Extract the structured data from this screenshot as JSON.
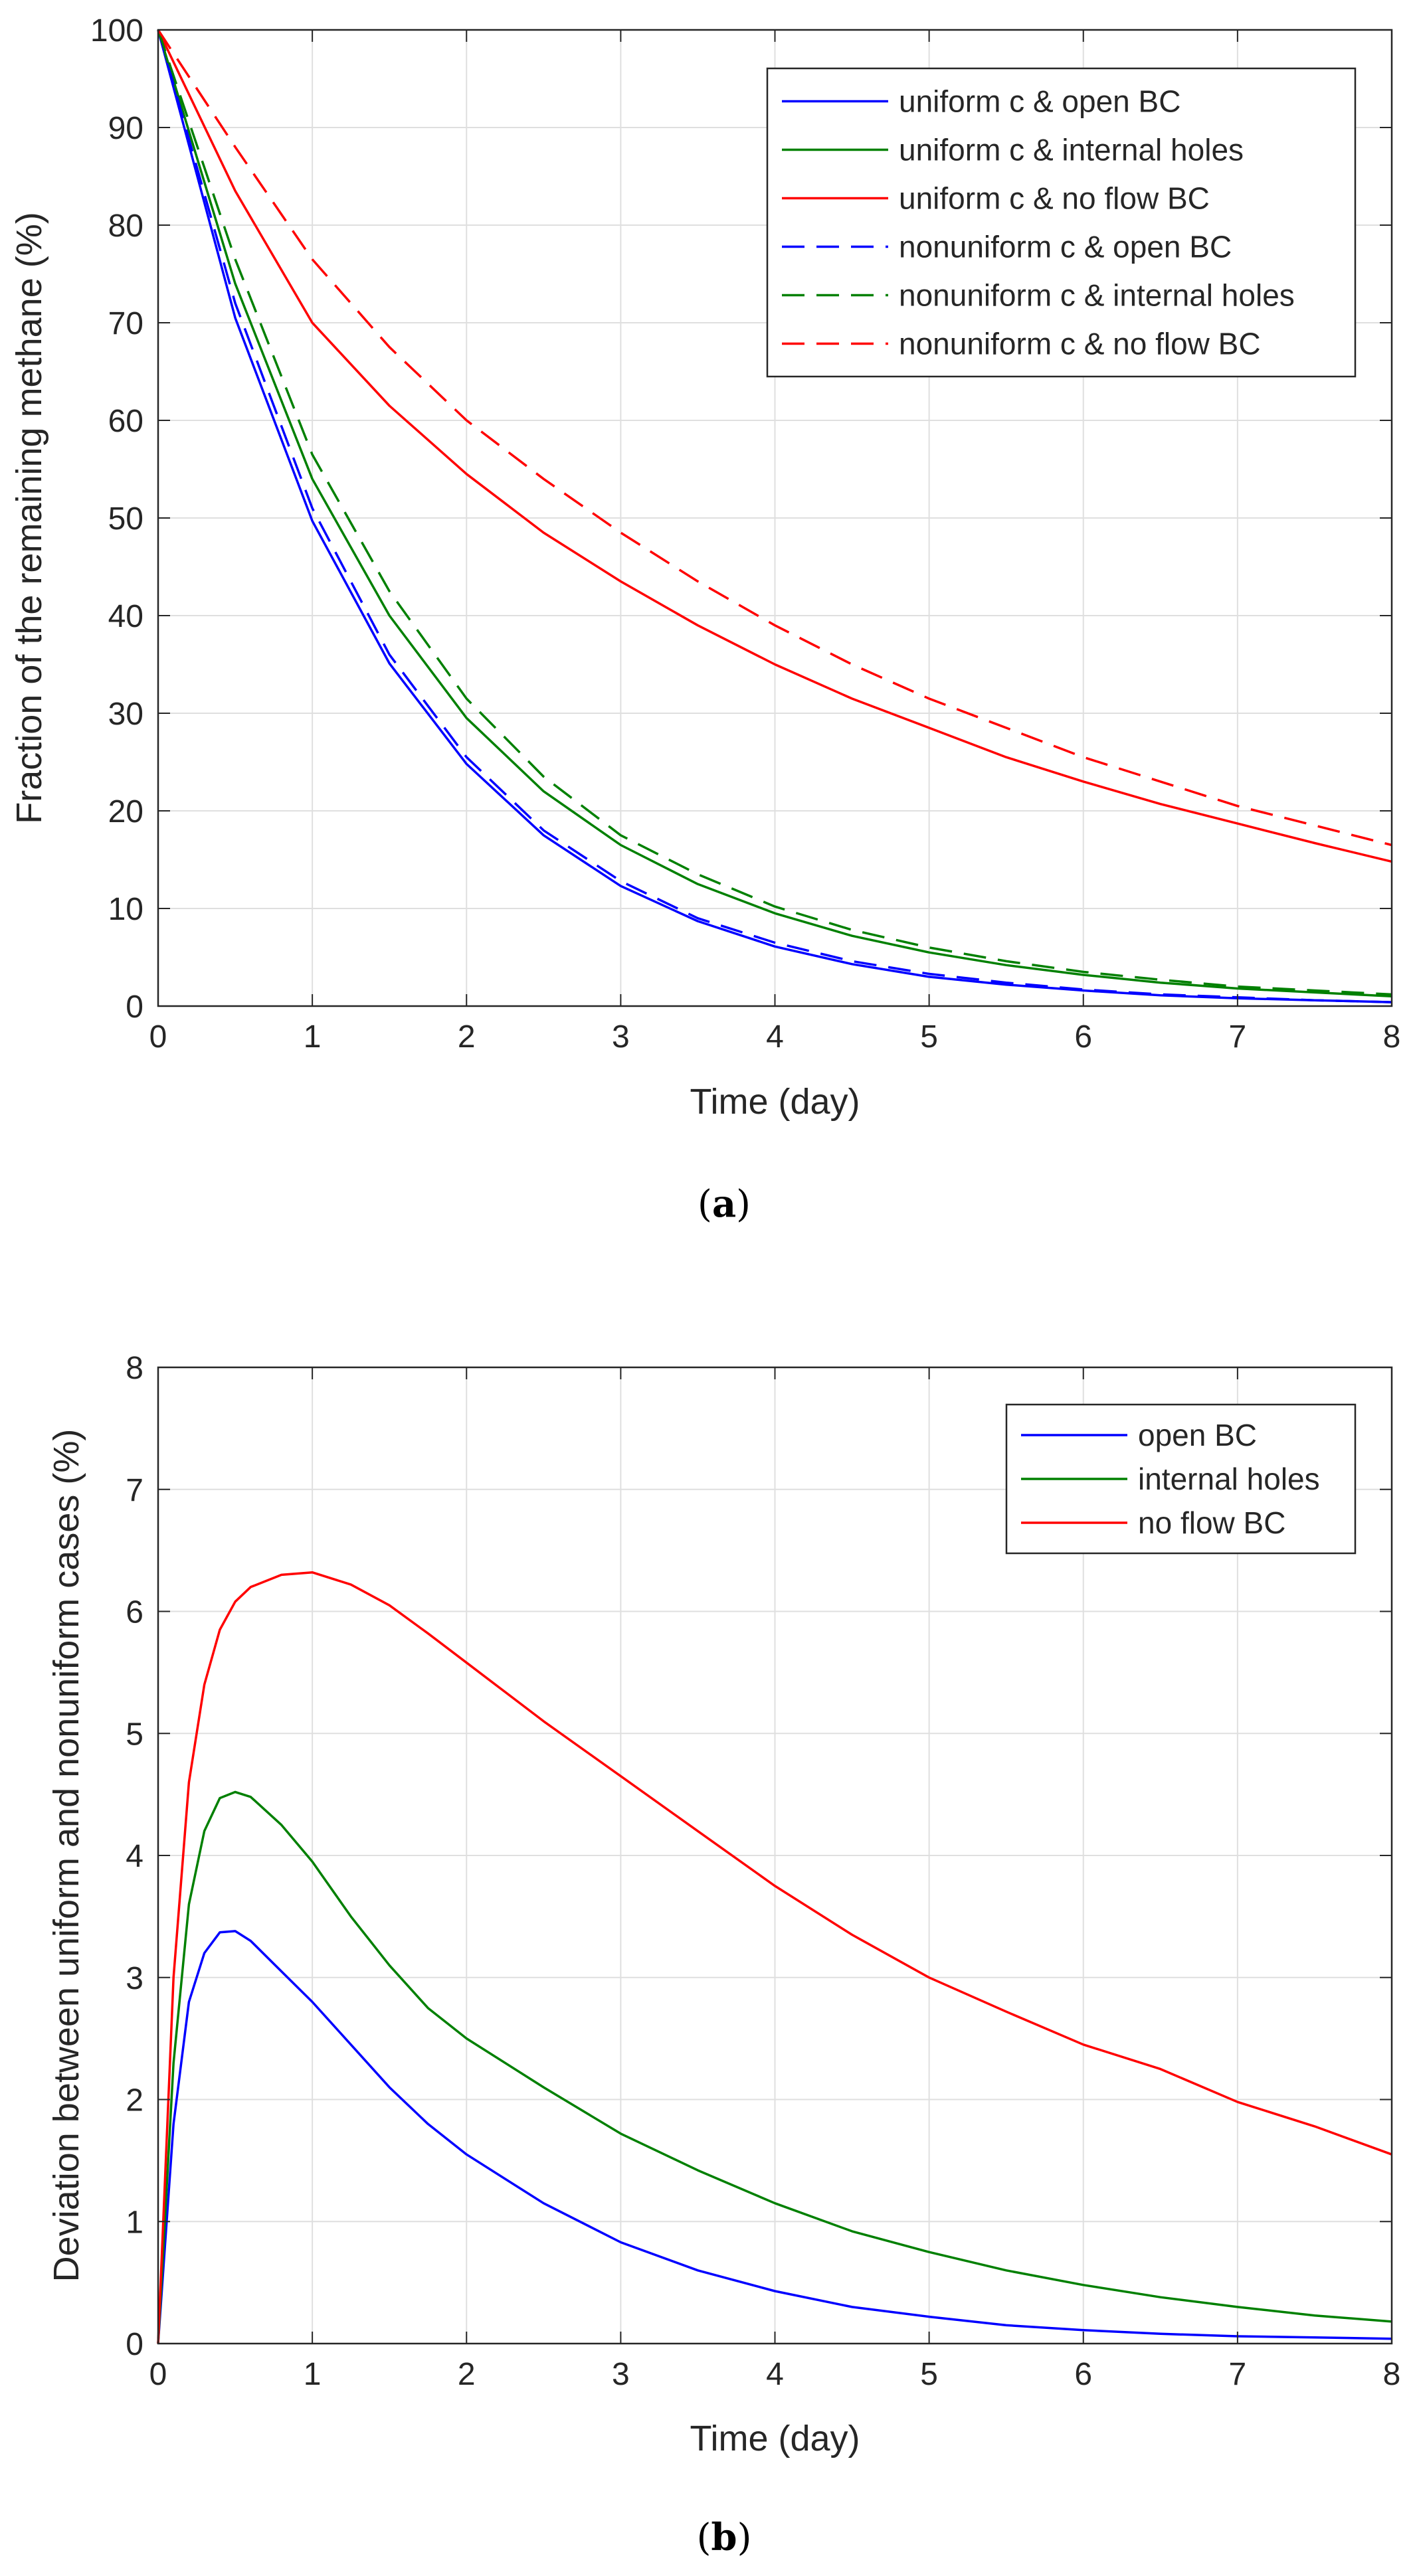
{
  "chart_data": [
    {
      "type": "line",
      "caption_letter": "a",
      "xlabel": "Time (day)",
      "ylabel": "Fraction of the remaining methane (%)",
      "xlim": [
        0,
        8
      ],
      "ylim": [
        0,
        100
      ],
      "xticks": [
        0,
        1,
        2,
        3,
        4,
        5,
        6,
        7,
        8
      ],
      "yticks": [
        0,
        10,
        20,
        30,
        40,
        50,
        60,
        70,
        80,
        90,
        100
      ],
      "grid": true,
      "legend_position": "top-right",
      "x": [
        0,
        0.5,
        1,
        1.5,
        2,
        2.5,
        3,
        3.5,
        4,
        4.5,
        5,
        5.5,
        6,
        6.5,
        7,
        7.5,
        8
      ],
      "series": [
        {
          "name": "uniform c & open BC",
          "color": "#0000ff",
          "dash": "solid",
          "values": [
            100,
            70.5,
            49.7,
            35.1,
            24.8,
            17.5,
            12.3,
            8.7,
            6.1,
            4.3,
            3.0,
            2.2,
            1.6,
            1.1,
            0.8,
            0.6,
            0.4
          ]
        },
        {
          "name": "uniform c & internal holes",
          "color": "#008000",
          "dash": "solid",
          "values": [
            100,
            74.0,
            54.0,
            40.0,
            29.5,
            22.0,
            16.5,
            12.5,
            9.5,
            7.2,
            5.5,
            4.2,
            3.2,
            2.4,
            1.8,
            1.4,
            1.0
          ]
        },
        {
          "name": "uniform c & no flow BC",
          "color": "#ff0000",
          "dash": "solid",
          "values": [
            100,
            83.5,
            70.0,
            61.5,
            54.5,
            48.5,
            43.5,
            39.0,
            35.0,
            31.5,
            28.5,
            25.5,
            23.0,
            20.7,
            18.7,
            16.7,
            14.8
          ]
        },
        {
          "name": "nonuniform c & open BC",
          "color": "#0000ff",
          "dash": "dashed",
          "values": [
            100,
            72.0,
            51.0,
            36.0,
            25.5,
            18.0,
            12.8,
            9.0,
            6.5,
            4.6,
            3.3,
            2.4,
            1.7,
            1.2,
            0.9,
            0.6,
            0.4
          ]
        },
        {
          "name": "nonuniform c & internal holes",
          "color": "#008000",
          "dash": "dashed",
          "values": [
            100,
            76.5,
            56.5,
            42.5,
            31.5,
            23.5,
            17.5,
            13.5,
            10.2,
            7.8,
            6.0,
            4.6,
            3.5,
            2.7,
            2.0,
            1.6,
            1.2
          ]
        },
        {
          "name": "nonuniform c & no flow BC",
          "color": "#ff0000",
          "dash": "dashed",
          "values": [
            100,
            88.0,
            76.5,
            67.5,
            60.0,
            54.0,
            48.5,
            43.5,
            39.0,
            35.0,
            31.5,
            28.5,
            25.5,
            23.0,
            20.5,
            18.5,
            16.5
          ]
        }
      ]
    },
    {
      "type": "line",
      "caption_letter": "b",
      "xlabel": "Time (day)",
      "ylabel": "Deviation between uniform and nonuniform cases (%)",
      "xlim": [
        0,
        8
      ],
      "ylim": [
        0,
        8
      ],
      "xticks": [
        0,
        1,
        2,
        3,
        4,
        5,
        6,
        7,
        8
      ],
      "yticks": [
        0,
        1,
        2,
        3,
        4,
        5,
        6,
        7,
        8
      ],
      "grid": true,
      "legend_position": "top-right",
      "x": [
        0,
        0.1,
        0.2,
        0.3,
        0.4,
        0.5,
        0.6,
        0.8,
        1,
        1.25,
        1.5,
        1.75,
        2,
        2.5,
        3,
        3.5,
        4,
        4.5,
        5,
        5.5,
        6,
        6.5,
        7,
        7.5,
        8
      ],
      "series": [
        {
          "name": "open BC",
          "color": "#0000ff",
          "dash": "solid",
          "values": [
            0,
            1.8,
            2.8,
            3.2,
            3.37,
            3.38,
            3.3,
            3.05,
            2.8,
            2.45,
            2.1,
            1.8,
            1.55,
            1.15,
            0.83,
            0.6,
            0.43,
            0.3,
            0.22,
            0.15,
            0.11,
            0.08,
            0.06,
            0.05,
            0.04
          ]
        },
        {
          "name": "internal holes",
          "color": "#008000",
          "dash": "solid",
          "values": [
            0,
            2.3,
            3.6,
            4.2,
            4.47,
            4.52,
            4.48,
            4.25,
            3.95,
            3.5,
            3.1,
            2.75,
            2.5,
            2.1,
            1.72,
            1.42,
            1.15,
            0.92,
            0.75,
            0.6,
            0.48,
            0.38,
            0.3,
            0.23,
            0.18
          ]
        },
        {
          "name": "no flow BC",
          "color": "#ff0000",
          "dash": "solid",
          "values": [
            0,
            3.0,
            4.6,
            5.4,
            5.85,
            6.08,
            6.2,
            6.3,
            6.32,
            6.22,
            6.05,
            5.82,
            5.58,
            5.1,
            4.65,
            4.2,
            3.75,
            3.35,
            3.0,
            2.72,
            2.45,
            2.25,
            1.98,
            1.78,
            1.55
          ]
        }
      ]
    }
  ]
}
